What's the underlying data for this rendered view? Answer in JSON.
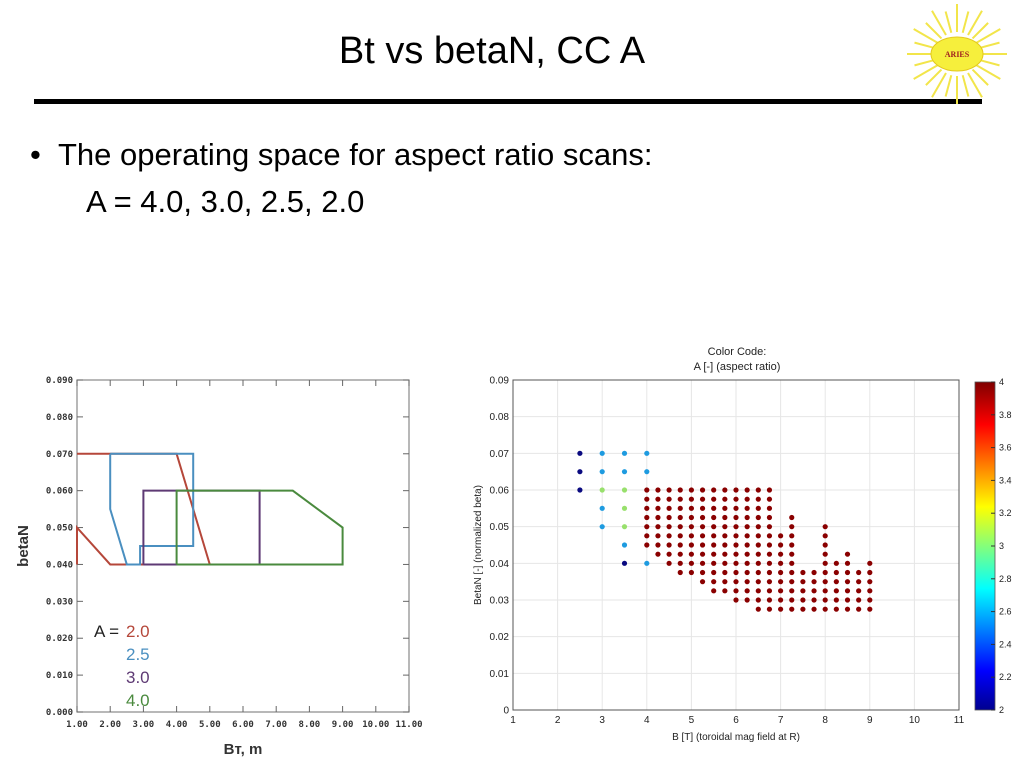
{
  "slide": {
    "title": "Bt vs betaN, CC A",
    "logo_text": "ARIES",
    "bullet": "The operating space for aspect ratio scans:",
    "sub": "A = 4.0, 3.0, 2.5, 2.0"
  },
  "chart_data": [
    {
      "type": "line",
      "xlabel": "Bт, m",
      "ylabel": "betaN",
      "xlim": [
        1.0,
        11.0
      ],
      "ylim": [
        0.0,
        0.09
      ],
      "x_ticks": [
        "1.00",
        "2.00",
        "3.00",
        "4.00",
        "5.00",
        "6.00",
        "7.00",
        "8.00",
        "9.00",
        "10.00",
        "11.00"
      ],
      "y_ticks": [
        "0.000",
        "0.010",
        "0.020",
        "0.030",
        "0.040",
        "0.050",
        "0.060",
        "0.070",
        "0.080",
        "0.090"
      ],
      "grid": false,
      "legend_prefix": "A =",
      "series": [
        {
          "name": "2.0",
          "color": "#b5473a",
          "x": [
            1.0,
            1.0,
            2.0,
            4.0,
            5.0,
            4.0,
            2.0,
            1.0
          ],
          "y": [
            0.04,
            0.05,
            0.04,
            0.04,
            0.04,
            0.07,
            0.07,
            0.07
          ]
        },
        {
          "name": "2.5",
          "color": "#4a8fc0",
          "x": [
            2.0,
            2.0,
            2.5,
            2.9,
            2.9,
            4.5,
            4.5,
            4.5,
            2.0
          ],
          "y": [
            0.07,
            0.055,
            0.04,
            0.04,
            0.045,
            0.045,
            0.07,
            0.07,
            0.07
          ]
        },
        {
          "name": "3.0",
          "color": "#5e3a74",
          "x": [
            3.0,
            3.0,
            6.5,
            6.5,
            3.0
          ],
          "y": [
            0.04,
            0.06,
            0.06,
            0.04,
            0.04
          ]
        },
        {
          "name": "4.0",
          "color": "#4a8a3e",
          "x": [
            4.0,
            4.0,
            7.5,
            9.0,
            9.0,
            4.0
          ],
          "y": [
            0.04,
            0.06,
            0.06,
            0.05,
            0.04,
            0.04
          ]
        }
      ]
    },
    {
      "type": "scatter",
      "title": "Color Code:",
      "subtitle": "A [-] (aspect ratio)",
      "xlabel": "B [T] (toroidal mag field at R)",
      "ylabel": "BetaN [-] (normalized beta)",
      "xlim": [
        1,
        11
      ],
      "ylim": [
        0,
        0.09
      ],
      "x_ticks": [
        "1",
        "2",
        "3",
        "4",
        "5",
        "6",
        "7",
        "8",
        "9",
        "10",
        "11"
      ],
      "y_ticks": [
        "0",
        "0.01",
        "0.02",
        "0.03",
        "0.04",
        "0.05",
        "0.06",
        "0.07",
        "0.08",
        "0.09"
      ],
      "grid": true,
      "colorbar": {
        "min": 2,
        "max": 4,
        "ticks": [
          "2",
          "2.2",
          "2.4",
          "2.6",
          "2.8",
          "3",
          "3.2",
          "3.4",
          "3.6",
          "3.8",
          "4"
        ]
      },
      "series": [
        {
          "a": 2.0,
          "color": "#0a0a80",
          "x": [
            2.5,
            2.5,
            2.5,
            3.5
          ],
          "y": [
            0.07,
            0.065,
            0.06,
            0.04
          ]
        },
        {
          "a": 2.5,
          "color": "#1e9be0",
          "x": [
            3.0,
            3.0,
            3.0,
            3.0,
            3.5,
            3.5,
            3.5,
            4.0,
            4.0,
            4.0
          ],
          "y": [
            0.07,
            0.065,
            0.055,
            0.05,
            0.07,
            0.065,
            0.045,
            0.07,
            0.065,
            0.04
          ]
        },
        {
          "a": 3.0,
          "color": "#98e06c",
          "x": [
            3.0,
            3.5,
            3.5,
            3.5
          ],
          "y": [
            0.06,
            0.06,
            0.055,
            0.05
          ]
        },
        {
          "a": 4.0,
          "color": "#8a0000",
          "columns": [
            {
              "x": 4.0,
              "y": [
                0.06,
                0.0575,
                0.055,
                0.0525,
                0.05,
                0.0475,
                0.045
              ]
            },
            {
              "x": 4.25,
              "y": [
                0.06,
                0.0575,
                0.055,
                0.0525,
                0.05,
                0.0475,
                0.045,
                0.0425
              ]
            },
            {
              "x": 4.5,
              "y": [
                0.06,
                0.0575,
                0.055,
                0.0525,
                0.05,
                0.0475,
                0.045,
                0.0425,
                0.04
              ]
            },
            {
              "x": 4.75,
              "y": [
                0.06,
                0.0575,
                0.055,
                0.0525,
                0.05,
                0.0475,
                0.045,
                0.0425,
                0.04,
                0.0375
              ]
            },
            {
              "x": 5.0,
              "y": [
                0.06,
                0.0575,
                0.055,
                0.0525,
                0.05,
                0.0475,
                0.045,
                0.0425,
                0.04,
                0.0375
              ]
            },
            {
              "x": 5.25,
              "y": [
                0.06,
                0.0575,
                0.055,
                0.0525,
                0.05,
                0.0475,
                0.045,
                0.0425,
                0.04,
                0.0375,
                0.035
              ]
            },
            {
              "x": 5.5,
              "y": [
                0.06,
                0.0575,
                0.055,
                0.0525,
                0.05,
                0.0475,
                0.045,
                0.0425,
                0.04,
                0.0375,
                0.035,
                0.0325
              ]
            },
            {
              "x": 5.75,
              "y": [
                0.06,
                0.0575,
                0.055,
                0.0525,
                0.05,
                0.0475,
                0.045,
                0.0425,
                0.04,
                0.0375,
                0.035,
                0.0325
              ]
            },
            {
              "x": 6.0,
              "y": [
                0.06,
                0.0575,
                0.055,
                0.0525,
                0.05,
                0.0475,
                0.045,
                0.0425,
                0.04,
                0.0375,
                0.035,
                0.0325,
                0.03
              ]
            },
            {
              "x": 6.25,
              "y": [
                0.06,
                0.0575,
                0.055,
                0.0525,
                0.05,
                0.0475,
                0.045,
                0.0425,
                0.04,
                0.0375,
                0.035,
                0.0325,
                0.03
              ]
            },
            {
              "x": 6.5,
              "y": [
                0.06,
                0.0575,
                0.055,
                0.0525,
                0.05,
                0.0475,
                0.045,
                0.0425,
                0.04,
                0.0375,
                0.035,
                0.0325,
                0.03,
                0.0275
              ]
            },
            {
              "x": 6.75,
              "y": [
                0.06,
                0.0575,
                0.055,
                0.0525,
                0.05,
                0.0475,
                0.045,
                0.0425,
                0.04,
                0.0375,
                0.035,
                0.0325,
                0.03,
                0.0275
              ]
            },
            {
              "x": 7.0,
              "y": [
                0.0475,
                0.045,
                0.0425,
                0.04,
                0.0375,
                0.035,
                0.0325,
                0.03,
                0.0275
              ]
            },
            {
              "x": 7.25,
              "y": [
                0.0525,
                0.05,
                0.0475,
                0.045,
                0.0425,
                0.04,
                0.0375,
                0.035,
                0.0325,
                0.03,
                0.0275
              ]
            },
            {
              "x": 7.5,
              "y": [
                0.0375,
                0.035,
                0.0325,
                0.03,
                0.0275
              ]
            },
            {
              "x": 7.75,
              "y": [
                0.0375,
                0.035,
                0.0325,
                0.03,
                0.0275
              ]
            },
            {
              "x": 8.0,
              "y": [
                0.05,
                0.0475,
                0.045,
                0.0425,
                0.04,
                0.0375,
                0.035,
                0.0325,
                0.03,
                0.0275
              ]
            },
            {
              "x": 8.25,
              "y": [
                0.04,
                0.0375,
                0.035,
                0.0325,
                0.03,
                0.0275
              ]
            },
            {
              "x": 8.5,
              "y": [
                0.0425,
                0.04,
                0.0375,
                0.035,
                0.0325,
                0.03,
                0.0275
              ]
            },
            {
              "x": 8.75,
              "y": [
                0.0375,
                0.035,
                0.0325,
                0.03,
                0.0275
              ]
            },
            {
              "x": 9.0,
              "y": [
                0.04,
                0.0375,
                0.035,
                0.0325,
                0.03,
                0.0275
              ]
            }
          ]
        }
      ]
    }
  ]
}
